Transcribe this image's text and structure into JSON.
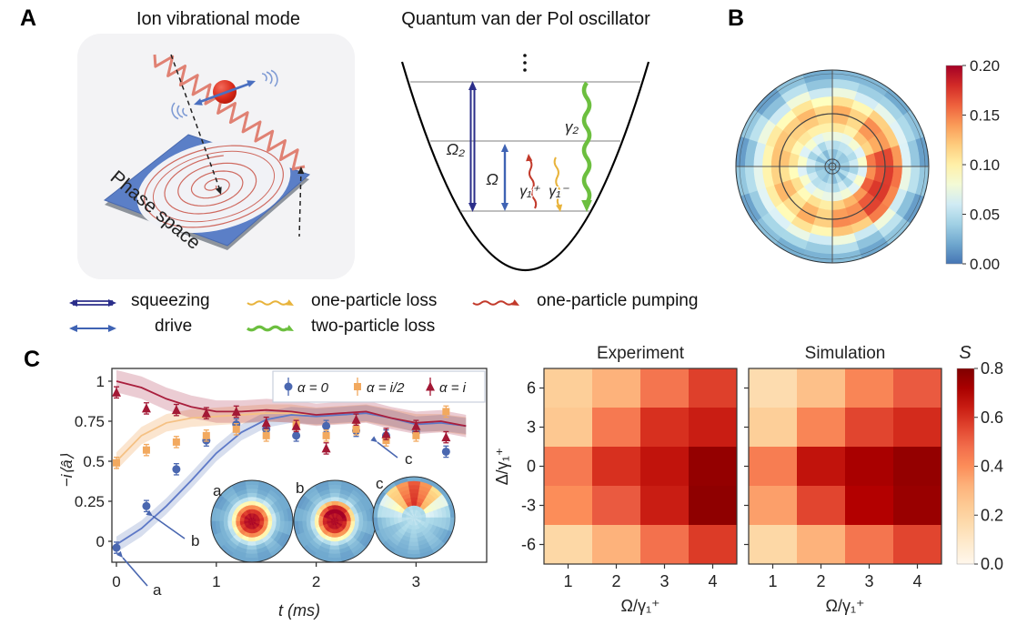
{
  "figure": {
    "panelA": {
      "label": "A",
      "ion_title": "Ion vibrational mode",
      "qvdp_title": "Quantum van der Pol oscillator",
      "phase_space": "Phase space",
      "omega2": "Ω₂",
      "omega": "Ω",
      "gamma1_plus": "γ₁⁺",
      "gamma1_minus": "γ₁⁻",
      "gamma2": "γ₂"
    },
    "panelB": {
      "label": "B"
    },
    "panelC": {
      "label": "C"
    },
    "process_legend": [
      {
        "name": "squeezing",
        "label": "squeezing",
        "color": "#2b2e8a",
        "icon": "double-arrow"
      },
      {
        "name": "drive",
        "label": "drive",
        "color": "#3f63b4",
        "icon": "arrow"
      },
      {
        "name": "one-particle-loss",
        "label": "one-particle loss",
        "color": "#e8b33b",
        "icon": "wavy"
      },
      {
        "name": "two-particle-loss",
        "label": "two-particle loss",
        "color": "#6cbf3f",
        "icon": "wavy-thick"
      },
      {
        "name": "one-particle-pumping",
        "label": "one-particle pumping",
        "color": "#c23a2b",
        "icon": "wavy"
      }
    ]
  },
  "chart_data": [
    {
      "id": "wigner-steady-state",
      "type": "heatmap",
      "subtype": "polar-wigner",
      "colormap": "RdYlBu_r",
      "clim": [
        0.0,
        0.2
      ],
      "colorbar_ticks": [
        0.2,
        0.15,
        0.1,
        0.05,
        0.0
      ],
      "n_sectors": 20,
      "ring_values": [
        0.03,
        0.038,
        0.052,
        0.075,
        0.1,
        0.118,
        0.122,
        0.098,
        0.068,
        0.042,
        0.026
      ],
      "hotspot": {
        "angle_deg": -20,
        "ring_from": 4,
        "ring_to": 7,
        "boost": 0.055,
        "width_deg": 38
      },
      "sector_jitter": 0.01
    },
    {
      "id": "mean-field-dynamics",
      "type": "line",
      "xlabel": "t (ms)",
      "ylabel": "−i⟨â⟩",
      "xticks": [
        0,
        1,
        2,
        3
      ],
      "yticks": [
        0,
        0.25,
        0.5,
        0.75,
        1
      ],
      "xlim": [
        -0.14,
        3.71
      ],
      "ylim": [
        -0.13,
        1.08
      ],
      "x": [
        0,
        0.3,
        0.6,
        0.9,
        1.2,
        1.5,
        1.8,
        2.1,
        2.4,
        2.7,
        3.0,
        3.3
      ],
      "series": [
        {
          "name": "α = 0",
          "marker": "circle",
          "color": "#4a67b0",
          "line_color": "#5e79c7",
          "values": [
            -0.04,
            0.22,
            0.45,
            0.63,
            0.73,
            0.7,
            0.66,
            0.72,
            0.69,
            0.66,
            0.68,
            0.56
          ],
          "err": 0.035
        },
        {
          "name": "α = i/2",
          "marker": "square",
          "color": "#f2a95f",
          "line_color": "#f5c184",
          "values": [
            0.49,
            0.57,
            0.62,
            0.66,
            0.7,
            0.66,
            0.73,
            0.66,
            0.7,
            0.63,
            0.66,
            0.81
          ],
          "err": 0.035
        },
        {
          "name": "α = i",
          "marker": "triangle",
          "color": "#a31835",
          "line_color": "#a91f3d",
          "values": [
            0.93,
            0.83,
            0.82,
            0.8,
            0.81,
            0.74,
            0.72,
            0.58,
            0.76,
            0.67,
            0.72,
            0.65
          ],
          "err": 0.035
        }
      ],
      "fits": {
        "x": [
          0,
          0.25,
          0.5,
          0.75,
          1.0,
          1.25,
          1.5,
          1.75,
          2.0,
          2.25,
          2.5,
          2.75,
          3.0,
          3.25,
          3.5
        ],
        "alpha0": [
          -0.02,
          0.08,
          0.22,
          0.38,
          0.55,
          0.68,
          0.76,
          0.79,
          0.78,
          0.79,
          0.8,
          0.77,
          0.73,
          0.74,
          0.72
        ],
        "alpha_i2": [
          0.5,
          0.66,
          0.74,
          0.77,
          0.78,
          0.79,
          0.8,
          0.8,
          0.78,
          0.79,
          0.8,
          0.77,
          0.74,
          0.74,
          0.72
        ],
        "alpha_i": [
          1.0,
          0.96,
          0.89,
          0.84,
          0.81,
          0.81,
          0.82,
          0.81,
          0.79,
          0.8,
          0.81,
          0.77,
          0.74,
          0.75,
          0.72
        ],
        "band_halfwidth": {
          "alpha0": 0.05,
          "alpha_i2": 0.055,
          "alpha_i": 0.07
        }
      },
      "annotations": [
        {
          "text": "a",
          "t": 0.0,
          "value": -0.04
        },
        {
          "text": "b",
          "t": 0.3,
          "value": 0.22
        },
        {
          "text": "c",
          "t": 2.64,
          "value": 0.67
        }
      ],
      "insets": [
        {
          "label": "a",
          "rings": [
            0.195,
            0.19,
            0.175,
            0.145,
            0.095,
            0.055,
            0.034,
            0.026,
            0.022,
            0.02
          ]
        },
        {
          "label": "b",
          "rings": [
            0.195,
            0.19,
            0.175,
            0.14,
            0.09,
            0.052,
            0.033,
            0.026,
            0.022,
            0.02
          ],
          "hotspot": {
            "angle_deg": 80,
            "ring_from": 2,
            "ring_to": 4,
            "boost": 0.045,
            "width_deg": 50
          }
        },
        {
          "label": "c",
          "rings": [
            0.052,
            0.05,
            0.046,
            0.042,
            0.038,
            0.034,
            0.031,
            0.028,
            0.024,
            0.021
          ],
          "hotspot": {
            "angle_deg": 90,
            "ring_from": 3,
            "ring_to": 8,
            "boost": 0.135,
            "width_deg": 42
          }
        }
      ]
    },
    {
      "id": "experiment-sync",
      "type": "heatmap",
      "title": "Experiment",
      "xlabel": "Ω/γ₁⁺",
      "ylabel": "Δ/γ₁⁺",
      "xticks": [
        1,
        2,
        3,
        4
      ],
      "yticks": [
        6,
        3,
        0,
        -3,
        -6
      ],
      "colormap": "OrRd",
      "clim": [
        0,
        0.8
      ],
      "values": [
        [
          0.22,
          0.32,
          0.46,
          0.57
        ],
        [
          0.25,
          0.45,
          0.6,
          0.64
        ],
        [
          0.45,
          0.6,
          0.66,
          0.76
        ],
        [
          0.4,
          0.52,
          0.64,
          0.77
        ],
        [
          0.18,
          0.32,
          0.47,
          0.58
        ]
      ]
    },
    {
      "id": "simulation-sync",
      "type": "heatmap",
      "title": "Simulation",
      "xlabel": "Ω/γ₁⁺",
      "ylabel": "",
      "xticks": [
        1,
        2,
        3,
        4
      ],
      "yticks": [
        6,
        3,
        0,
        -3,
        -6
      ],
      "colormap": "OrRd",
      "clim": [
        0,
        0.8
      ],
      "colorbar": {
        "label": "S",
        "ticks": [
          0.8,
          0.6,
          0.4,
          0.2,
          0.0
        ]
      },
      "values": [
        [
          0.16,
          0.28,
          0.42,
          0.52
        ],
        [
          0.22,
          0.42,
          0.56,
          0.61
        ],
        [
          0.44,
          0.66,
          0.72,
          0.76
        ],
        [
          0.36,
          0.56,
          0.7,
          0.75
        ],
        [
          0.18,
          0.32,
          0.46,
          0.56
        ]
      ]
    }
  ]
}
